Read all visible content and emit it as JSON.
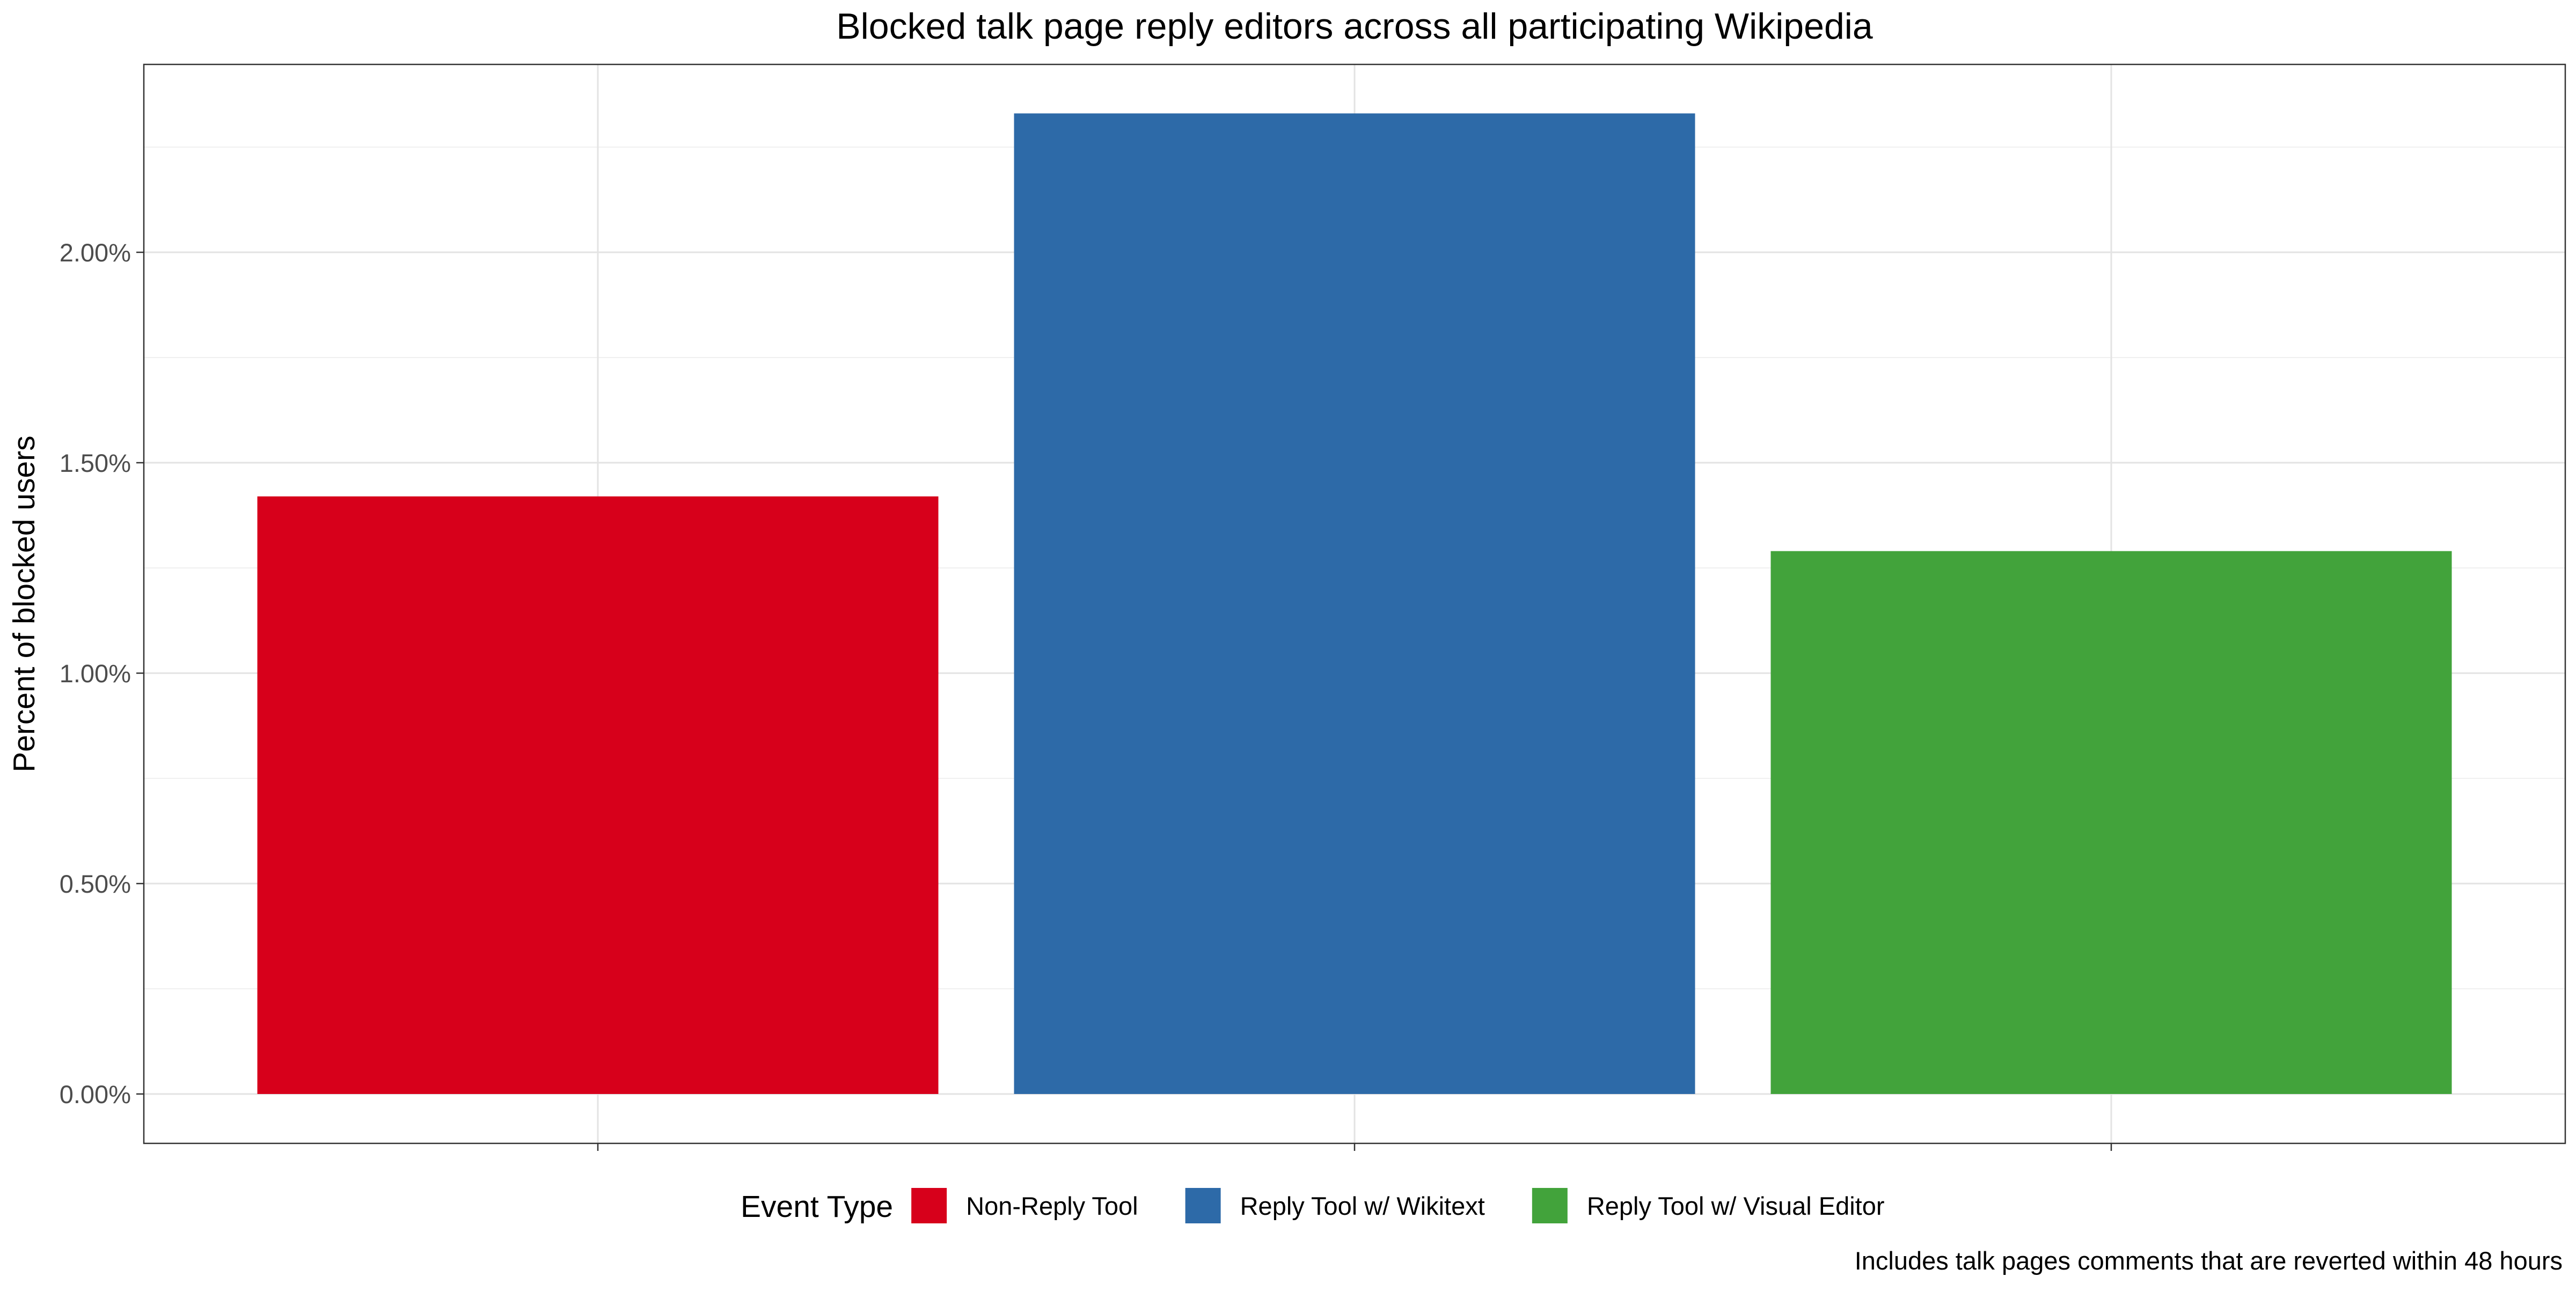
{
  "chart_data": {
    "type": "bar",
    "title": "Blocked talk page reply editors across all participating Wikipedia",
    "xlabel": "",
    "ylabel": "Percent of blocked users",
    "categories": [
      "Non-Reply Tool",
      "Reply Tool w/ Wikitext",
      "Reply Tool w/ Visual Editor"
    ],
    "values": [
      1.42,
      2.33,
      1.29
    ],
    "value_unit": "%",
    "ylim": [
      0,
      2.4
    ],
    "y_ticks": [
      0,
      0.5,
      1.0,
      1.5,
      2.0
    ],
    "y_tick_labels": [
      "0.00%",
      "0.50%",
      "1.00%",
      "1.50%",
      "2.00%"
    ],
    "x_tick_labels_visible": false,
    "grid": true,
    "legend": {
      "title": "Event Type",
      "position": "bottom",
      "entries": [
        "Non-Reply Tool",
        "Reply Tool w/ Wikitext",
        "Reply Tool w/ Visual Editor"
      ]
    },
    "colors": [
      "#d7001b",
      "#2d6aa8",
      "#42a33b"
    ],
    "caption": "Includes talk pages comments that are reverted within 48 hours"
  }
}
